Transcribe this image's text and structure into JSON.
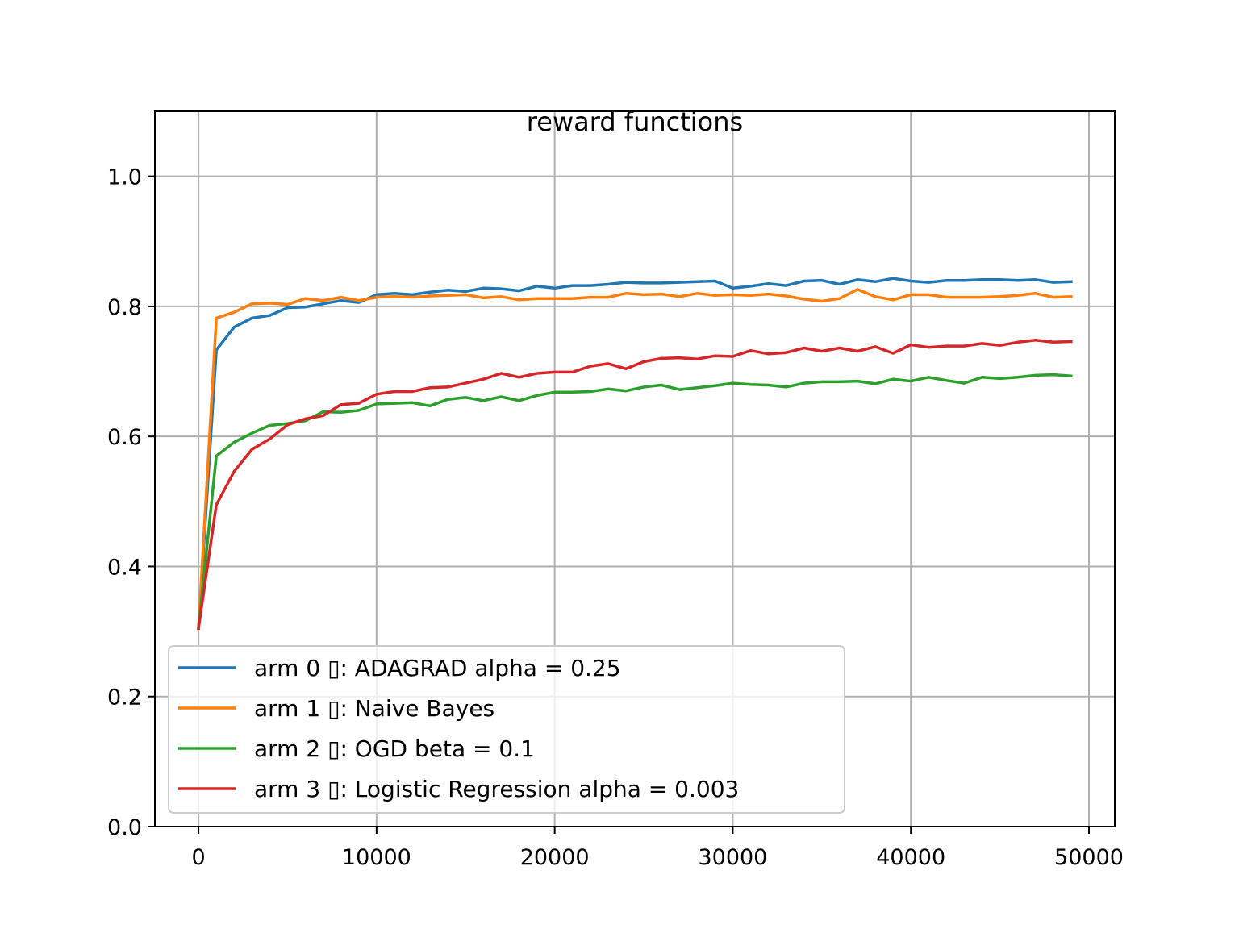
{
  "chart_data": {
    "type": "line",
    "title": "reward functions",
    "xlabel": "",
    "ylabel": "",
    "xlim": [
      -2450,
      51450
    ],
    "ylim": [
      0,
      1.1
    ],
    "xticks": [
      0,
      10000,
      20000,
      30000,
      40000,
      50000
    ],
    "xtick_labels": [
      "0",
      "10000",
      "20000",
      "30000",
      "40000",
      "50000"
    ],
    "yticks": [
      0,
      0.2,
      0.4,
      0.6,
      0.8,
      1.0
    ],
    "ytick_labels": [
      "0.0",
      "0.2",
      "0.4",
      "0.6",
      "0.8",
      "1.0"
    ],
    "grid": true,
    "legend_position": "lower-left",
    "x": [
      0,
      1000,
      2000,
      3000,
      4000,
      5000,
      6000,
      7000,
      8000,
      9000,
      10000,
      11000,
      12000,
      13000,
      14000,
      15000,
      16000,
      17000,
      18000,
      19000,
      20000,
      21000,
      22000,
      23000,
      24000,
      25000,
      26000,
      27000,
      28000,
      29000,
      30000,
      31000,
      32000,
      33000,
      34000,
      35000,
      36000,
      37000,
      38000,
      39000,
      40000,
      41000,
      42000,
      43000,
      44000,
      45000,
      46000,
      47000,
      48000,
      49000
    ],
    "series": [
      {
        "name": "arm 0 ▯: ADAGRAD alpha = 0.25",
        "color": "#1f77b4",
        "values": [
          0.305,
          0.733,
          0.768,
          0.782,
          0.786,
          0.798,
          0.799,
          0.804,
          0.809,
          0.806,
          0.818,
          0.82,
          0.818,
          0.822,
          0.825,
          0.823,
          0.828,
          0.827,
          0.824,
          0.831,
          0.828,
          0.832,
          0.832,
          0.834,
          0.837,
          0.836,
          0.836,
          0.837,
          0.838,
          0.839,
          0.828,
          0.831,
          0.835,
          0.832,
          0.839,
          0.84,
          0.834,
          0.841,
          0.838,
          0.843,
          0.839,
          0.837,
          0.84,
          0.84,
          0.841,
          0.841,
          0.84,
          0.841,
          0.837,
          0.838
        ]
      },
      {
        "name": "arm 1 ▯: Naive Bayes",
        "color": "#ff7f0e",
        "values": [
          0.305,
          0.782,
          0.791,
          0.804,
          0.805,
          0.803,
          0.812,
          0.809,
          0.814,
          0.809,
          0.814,
          0.815,
          0.814,
          0.816,
          0.817,
          0.818,
          0.813,
          0.815,
          0.81,
          0.812,
          0.812,
          0.812,
          0.814,
          0.814,
          0.82,
          0.818,
          0.819,
          0.815,
          0.82,
          0.817,
          0.818,
          0.817,
          0.819,
          0.816,
          0.811,
          0.808,
          0.812,
          0.826,
          0.815,
          0.81,
          0.818,
          0.818,
          0.814,
          0.814,
          0.814,
          0.815,
          0.817,
          0.82,
          0.814,
          0.815
        ]
      },
      {
        "name": "arm 2 ▯: OGD beta = 0.1",
        "color": "#2ca02c",
        "values": [
          0.305,
          0.57,
          0.591,
          0.605,
          0.617,
          0.62,
          0.624,
          0.638,
          0.637,
          0.64,
          0.65,
          0.651,
          0.652,
          0.647,
          0.657,
          0.66,
          0.655,
          0.661,
          0.655,
          0.663,
          0.668,
          0.668,
          0.669,
          0.673,
          0.67,
          0.676,
          0.679,
          0.672,
          0.675,
          0.678,
          0.682,
          0.68,
          0.679,
          0.676,
          0.682,
          0.684,
          0.684,
          0.685,
          0.681,
          0.688,
          0.685,
          0.691,
          0.686,
          0.682,
          0.691,
          0.689,
          0.691,
          0.694,
          0.695,
          0.693
        ]
      },
      {
        "name": "arm 3 ▯: Logistic Regression alpha = 0.003",
        "color": "#d62728",
        "values": [
          0.305,
          0.495,
          0.546,
          0.58,
          0.596,
          0.618,
          0.627,
          0.632,
          0.649,
          0.651,
          0.665,
          0.669,
          0.669,
          0.675,
          0.676,
          0.682,
          0.688,
          0.697,
          0.691,
          0.697,
          0.699,
          0.699,
          0.708,
          0.712,
          0.704,
          0.715,
          0.72,
          0.721,
          0.719,
          0.724,
          0.723,
          0.732,
          0.727,
          0.729,
          0.736,
          0.731,
          0.736,
          0.731,
          0.738,
          0.728,
          0.741,
          0.737,
          0.739,
          0.739,
          0.743,
          0.74,
          0.745,
          0.748,
          0.745,
          0.746
        ]
      }
    ]
  }
}
